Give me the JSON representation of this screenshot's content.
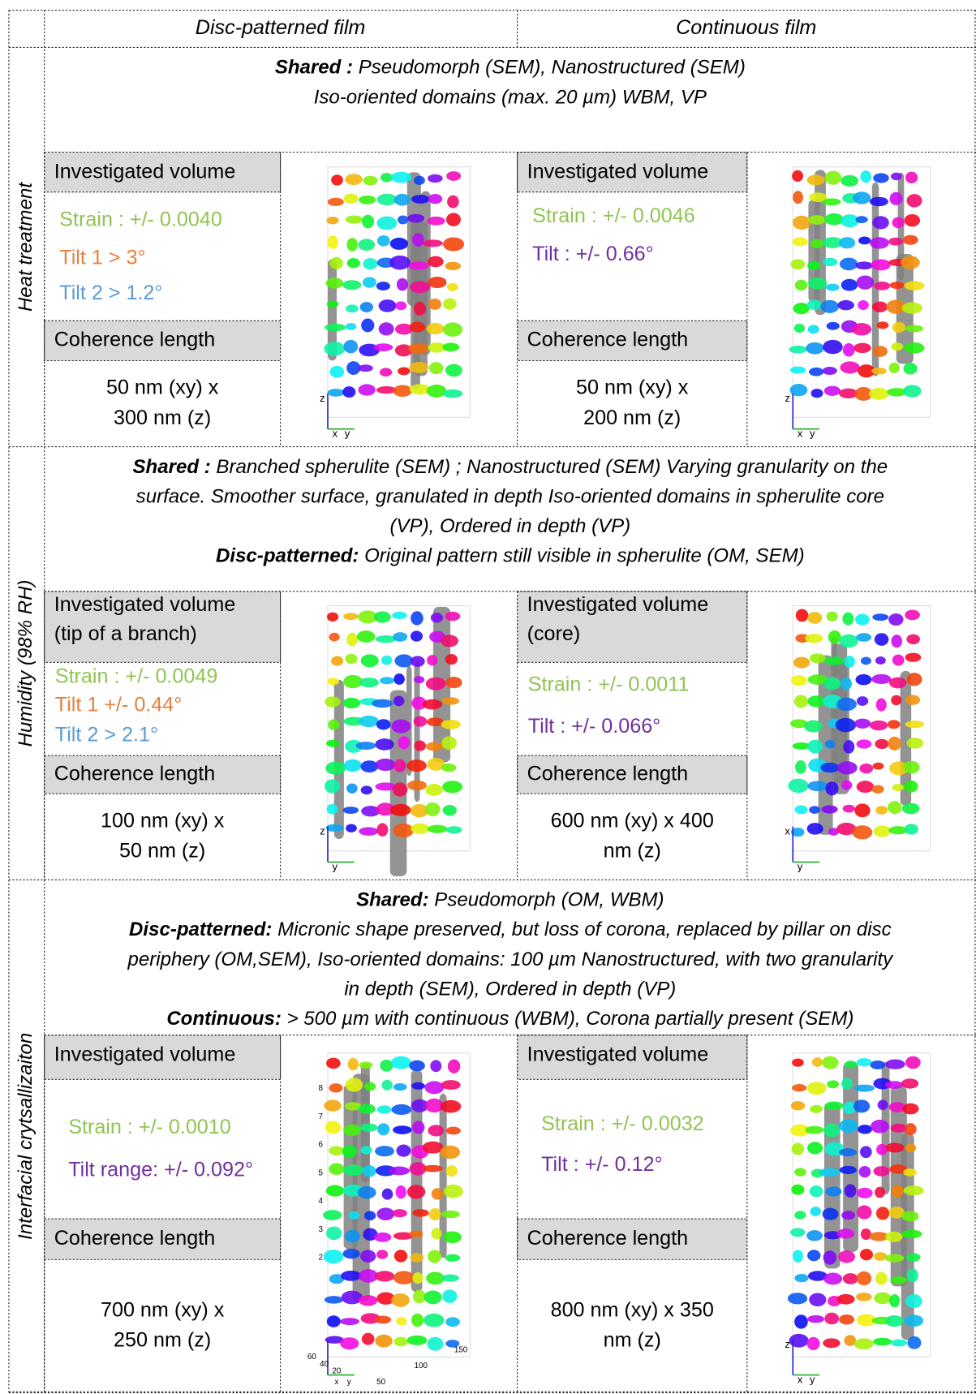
{
  "header": {
    "col1": "Disc-patterned film",
    "col2": "Continuous film"
  },
  "sections": [
    {
      "label": "Heat treatment",
      "shared": [
        {
          "bold": "Shared :",
          "text": " Pseudomorph (SEM), Nanostructured (SEM)"
        },
        {
          "text": "Iso-oriented domains (max. 20 µm) WBM, VP"
        }
      ],
      "disc": {
        "volume": [
          "Investigated volume"
        ],
        "metrics": [
          {
            "text": "Strain : +/- 0.0040",
            "color": "#92c353"
          },
          {
            "text": "Tilt 1 > 3°",
            "color": "#e5803f"
          },
          {
            "text": "Tilt 2 > 1.2°",
            "color": "#5b9bd5"
          }
        ],
        "coherence_title": "Coherence length",
        "coherence": [
          "50 nm (xy) x",
          "300 nm (z)"
        ],
        "image_labels": [
          "z",
          "x",
          "y"
        ]
      },
      "continuous": {
        "volume": [
          "Investigated volume"
        ],
        "metrics": [
          {
            "text": "Strain : +/- 0.0046",
            "color": "#92c353"
          },
          {
            "text": "Tilt : +/- 0.66°",
            "color": "#7030a0"
          }
        ],
        "coherence_title": "Coherence length",
        "coherence": [
          "50 nm (xy) x",
          "200 nm (z)"
        ],
        "image_labels": [
          "z",
          "x",
          "y"
        ]
      }
    },
    {
      "label": "Humidity (98% RH)",
      "shared": [
        {
          "bold": "Shared :",
          "text": " Branched spherulite (SEM) ; Nanostructured (SEM) Varying granularity on the"
        },
        {
          "text": "surface. Smoother surface, granulated in depth Iso-oriented domains in spherulite core"
        },
        {
          "text": "(VP), Ordered in depth (VP)"
        },
        {
          "bold": "Disc-patterned:",
          "text": " Original pattern still visible in spherulite (OM, SEM)"
        }
      ],
      "disc": {
        "volume": [
          "Investigated volume",
          "(tip of a branch)"
        ],
        "metrics": [
          {
            "text": "Strain : +/- 0.0049",
            "color": "#92c353"
          },
          {
            "text": "Tilt 1 +/- 0.44°",
            "color": "#e5803f"
          },
          {
            "text": "Tilt 2 > 2.1°",
            "color": "#5b9bd5"
          }
        ],
        "coherence_title": "Coherence length",
        "coherence": [
          "100 nm (xy) x",
          "50 nm (z)"
        ],
        "image_labels": [
          "z",
          "y"
        ]
      },
      "continuous": {
        "volume": [
          "Investigated volume",
          "(core)"
        ],
        "metrics": [
          {
            "text": "Strain : +/- 0.0011",
            "color": "#92c353"
          },
          {
            "text": "Tilt : +/- 0.066°",
            "color": "#7030a0"
          }
        ],
        "coherence_title": "Coherence length",
        "coherence": [
          "600  nm (xy) x 400",
          "nm (z)"
        ],
        "image_labels": [
          "x",
          "y"
        ]
      }
    },
    {
      "label": "Interfacial crytsallizaiton",
      "shared": [
        {
          "bold": "Shared:",
          "text": " Pseudomorph (OM, WBM)"
        },
        {
          "bold": "Disc-patterned:",
          "text": " Micronic shape preserved, but loss of corona, replaced by pillar on disc"
        },
        {
          "text": "periphery  (OM,SEM), Iso-oriented domains: 100 µm Nanostructured, with two granularity"
        },
        {
          "text": "in depth (SEM), Ordered in depth (VP)"
        },
        {
          "bold": "Continuous:",
          "text": "  > 500 µm with continuous (WBM), Corona partially present (SEM)"
        }
      ],
      "disc": {
        "volume": [
          "Investigated volume"
        ],
        "metrics": [
          {
            "text": "Strain :  +/- 0.0010",
            "color": "#92c353"
          },
          {
            "text": "Tilt range: +/- 0.092°",
            "color": "#7030a0"
          }
        ],
        "coherence_title": "Coherence length",
        "coherence": [
          "700 nm (xy) x",
          "250 nm (z)"
        ],
        "image_labels": [
          "8",
          "7",
          "6",
          "5",
          "4",
          "3",
          "2",
          "60",
          "40",
          "20",
          "x",
          "y",
          "50",
          "100",
          "150"
        ]
      },
      "continuous": {
        "volume": [
          "Investigated volume"
        ],
        "metrics": [
          {
            "text": "Strain : +/- 0.0032",
            "color": "#92c353"
          },
          {
            "text": "Tilt : +/- 0.12°",
            "color": "#7030a0"
          }
        ],
        "coherence_title": "Coherence length",
        "coherence": [
          "800 nm (xy) x 350",
          "nm (z)"
        ],
        "image_labels": [
          "z",
          "x",
          "y"
        ]
      }
    }
  ]
}
